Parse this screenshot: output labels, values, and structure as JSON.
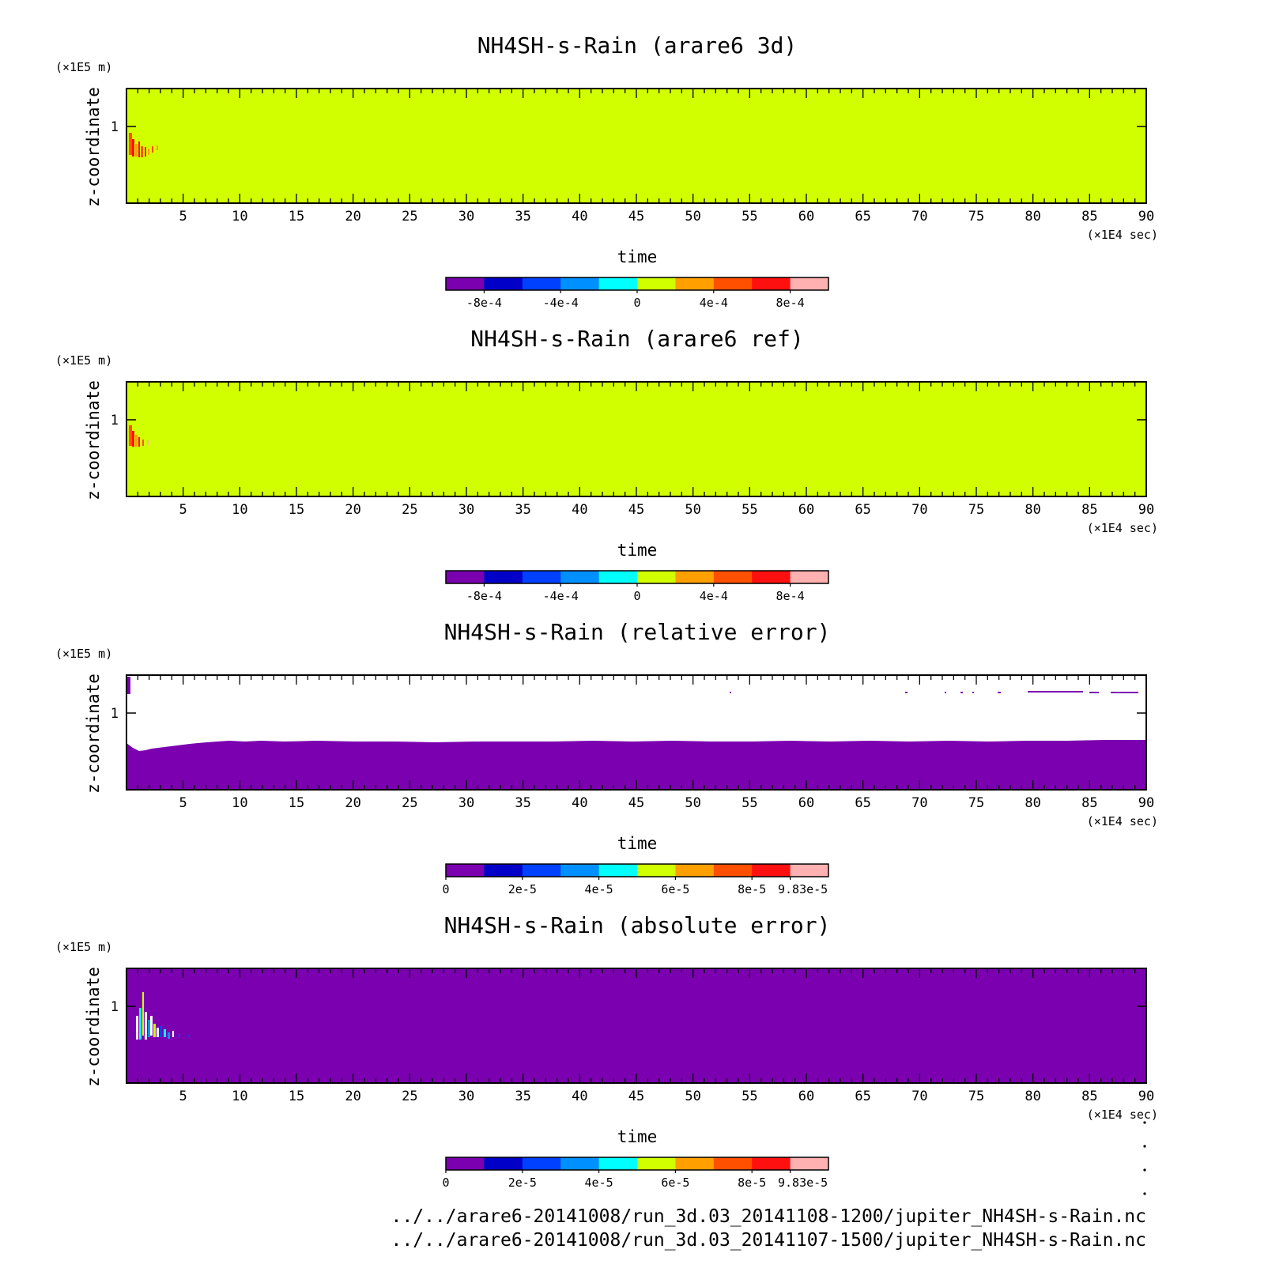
{
  "chart_data": [
    {
      "type": "heatmap",
      "title": "NH4SH-s-Rain (arare6 3d)",
      "xlabel": "time",
      "x_unit": "(×1E4 sec)",
      "ylabel": "z-coordinate",
      "y_unit": "(×1E5 m)",
      "xlim": [
        0,
        90
      ],
      "ylim": [
        0,
        1.5
      ],
      "x_ticks": [
        "5",
        "10",
        "15",
        "20",
        "25",
        "30",
        "35",
        "40",
        "45",
        "50",
        "55",
        "60",
        "65",
        "70",
        "75",
        "80",
        "85",
        "90"
      ],
      "y_ticks": [
        "1"
      ],
      "background_level": "0",
      "colorbar": {
        "colors": [
          "#7b00b0",
          "#0000c8",
          "#0040ff",
          "#0090ff",
          "#00ffff",
          "#d2ff00",
          "#ffa000",
          "#ff5000",
          "#ff1010",
          "#ffb0b0"
        ],
        "tick_labels": [
          "-8e-4",
          "-4e-4",
          "0",
          "4e-4",
          "8e-4"
        ]
      }
    },
    {
      "type": "heatmap",
      "title": "NH4SH-s-Rain (arare6 ref)",
      "xlabel": "time",
      "x_unit": "(×1E4 sec)",
      "ylabel": "z-coordinate",
      "y_unit": "(×1E5 m)",
      "xlim": [
        0,
        90
      ],
      "ylim": [
        0,
        1.5
      ],
      "x_ticks": [
        "5",
        "10",
        "15",
        "20",
        "25",
        "30",
        "35",
        "40",
        "45",
        "50",
        "55",
        "60",
        "65",
        "70",
        "75",
        "80",
        "85",
        "90"
      ],
      "y_ticks": [
        "1"
      ],
      "background_level": "0",
      "colorbar": {
        "colors": [
          "#7b00b0",
          "#0000c8",
          "#0040ff",
          "#0090ff",
          "#00ffff",
          "#d2ff00",
          "#ffa000",
          "#ff5000",
          "#ff1010",
          "#ffb0b0"
        ],
        "tick_labels": [
          "-8e-4",
          "-4e-4",
          "0",
          "4e-4",
          "8e-4"
        ]
      }
    },
    {
      "type": "heatmap",
      "title": "NH4SH-s-Rain (relative error)",
      "xlabel": "time",
      "x_unit": "(×1E4 sec)",
      "ylabel": "z-coordinate",
      "y_unit": "(×1E5 m)",
      "xlim": [
        0,
        90
      ],
      "ylim": [
        0,
        1.5
      ],
      "x_ticks": [
        "5",
        "10",
        "15",
        "20",
        "25",
        "30",
        "35",
        "40",
        "45",
        "50",
        "55",
        "60",
        "65",
        "70",
        "75",
        "80",
        "85",
        "90"
      ],
      "y_ticks": [
        "1"
      ],
      "background_level": "0",
      "colorbar": {
        "colors": [
          "#7b00b0",
          "#0000c8",
          "#0040ff",
          "#0090ff",
          "#00ffff",
          "#d2ff00",
          "#ffa000",
          "#ff5000",
          "#ff1010",
          "#ffb0b0"
        ],
        "tick_labels": [
          "0",
          "2e-5",
          "4e-5",
          "6e-5",
          "8e-5",
          "9.83e-5"
        ]
      }
    },
    {
      "type": "heatmap",
      "title": "NH4SH-s-Rain (absolute error)",
      "xlabel": "time",
      "x_unit": "(×1E4 sec)",
      "ylabel": "z-coordinate",
      "y_unit": "(×1E5 m)",
      "xlim": [
        0,
        90
      ],
      "ylim": [
        0,
        1.5
      ],
      "x_ticks": [
        "5",
        "10",
        "15",
        "20",
        "25",
        "30",
        "35",
        "40",
        "45",
        "50",
        "55",
        "60",
        "65",
        "70",
        "75",
        "80",
        "85",
        "90"
      ],
      "y_ticks": [
        "1"
      ],
      "background_level": "0",
      "colorbar": {
        "colors": [
          "#7b00b0",
          "#0000c8",
          "#0040ff",
          "#0090ff",
          "#00ffff",
          "#d2ff00",
          "#ffa000",
          "#ff5000",
          "#ff1010",
          "#ffb0b0"
        ],
        "tick_labels": [
          "0",
          "2e-5",
          "4e-5",
          "6e-5",
          "8e-5",
          "9.83e-5"
        ]
      }
    }
  ],
  "footer": {
    "path1": "../../arare6-20141008/run_3d.03_20141108-1200/jupiter_NH4SH-s-Rain.nc",
    "path2": "../../arare6-20141008/run_3d.03_20141107-1500/jupiter_NH4SH-s-Rain.nc"
  }
}
